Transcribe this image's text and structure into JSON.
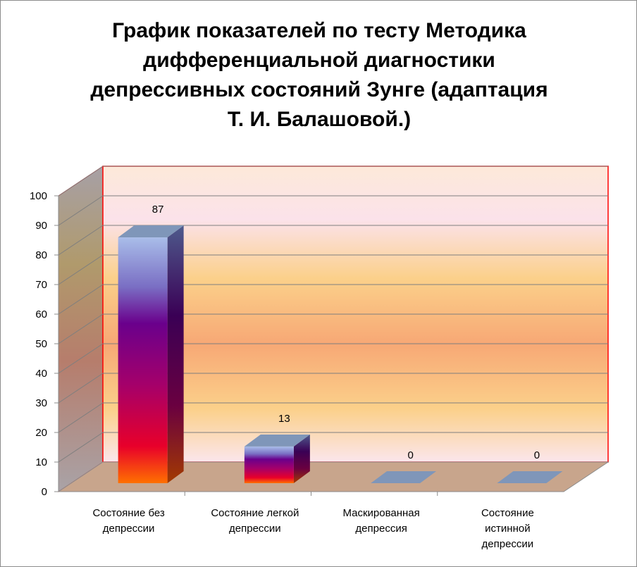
{
  "chart_data": {
    "type": "bar",
    "title": "График показателей по тесту Методика дифференциальной диагностики депрессивных состояний Зунге (адаптация Т. И. Балашовой.)",
    "title_lines": [
      "График показателей по тесту Методика",
      "дифференциальной диагностики",
      "депрессивных состояний Зунге (адаптация",
      "Т. И. Балашовой.)"
    ],
    "categories": [
      [
        "Состояние без",
        "депрессии"
      ],
      [
        "Состояние легкой",
        "депрессии"
      ],
      [
        "Маскированная",
        "депрессия"
      ],
      [
        "Состояние",
        "истинной",
        "депрессии"
      ]
    ],
    "values": [
      87,
      13,
      0,
      0
    ],
    "data_labels": [
      "87",
      "13",
      "0",
      "0"
    ],
    "ylim": [
      0,
      100
    ],
    "y_ticks": [
      0,
      10,
      20,
      30,
      40,
      50,
      60,
      70,
      80,
      90,
      100
    ],
    "grid": true,
    "legend": "none",
    "colors": {
      "bar_top": "#9fb4e6",
      "bar_mid_blue": "#7a83c9",
      "bar_purple": "#6a008c",
      "bar_magenta": "#a3006e",
      "bar_red": "#e0002a",
      "bar_bottom": "#ff6a00",
      "bar_cap": "#7f96b9",
      "floor": "#c8a58c",
      "plot_border": "#ff0000",
      "wall_peach": "#f7a875",
      "wall_light": "#fde9d9",
      "wall_pink": "#fbe4ea"
    }
  }
}
